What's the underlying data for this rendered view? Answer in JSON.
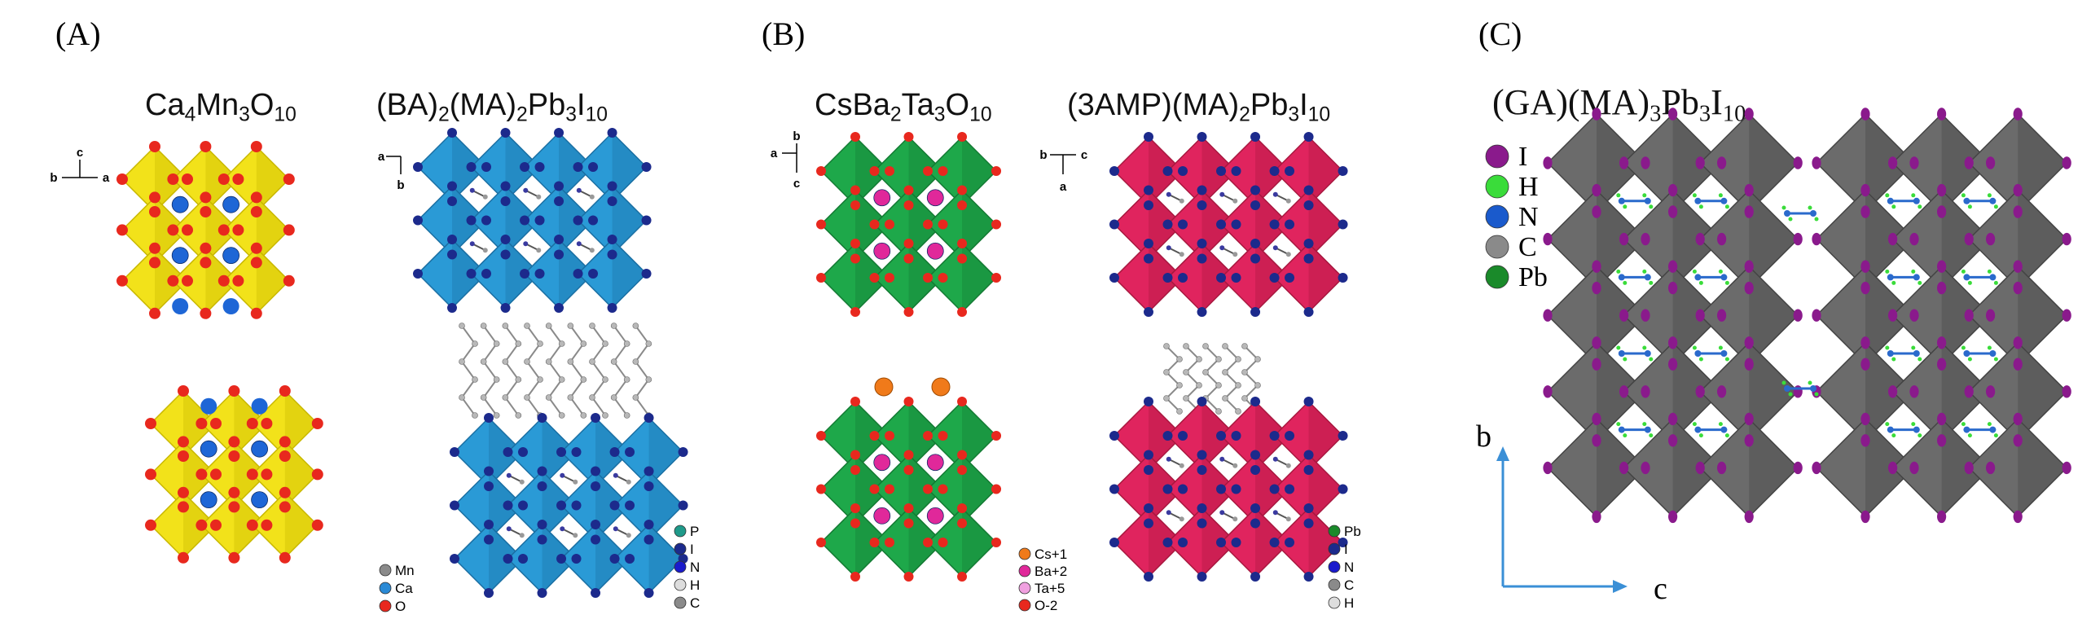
{
  "panels": [
    {
      "label": "(A)",
      "structures": [
        {
          "title": {
            "base": [
              "Ca",
              "Mn",
              "O"
            ],
            "subs": [
              "4",
              "3",
              "10"
            ]
          },
          "axes": [
            "c",
            "b",
            "a"
          ],
          "legend": [
            "Mn",
            "Ca",
            "O"
          ],
          "colors": {
            "octahedron": "#f2e21a",
            "octahedron_dark": "#c9b800",
            "anion": "#e8281e",
            "cation": "#1e66d6"
          }
        },
        {
          "title": {
            "text1": "(BA)",
            "sub1": "2",
            "text2": "(MA)",
            "sub2": "2",
            "text3": "Pb",
            "sub3": "3",
            "text4": "I",
            "sub4": "10"
          },
          "axes": [
            "a",
            "b"
          ],
          "legend": [
            "P",
            "I",
            "N",
            "H",
            "C"
          ],
          "colors": {
            "octahedron": "#2a9ad6",
            "octahedron_dark": "#1a6fa3",
            "anion": "#1c2a8c"
          }
        }
      ]
    },
    {
      "label": "(B)",
      "structures": [
        {
          "title": {
            "base": [
              "CsBa",
              "Ta",
              "O"
            ],
            "subs": [
              "2",
              "3",
              "10"
            ]
          },
          "axes": [
            "a",
            "b",
            "c"
          ],
          "legend": [
            "Cs+1",
            "Ba+2",
            "Ta+5",
            "O-2"
          ],
          "colors": {
            "octahedron": "#1ea84a",
            "octahedron_dark": "#137a33",
            "anion": "#e8281e",
            "cation": "#e0289a",
            "spacer": "#f07a1a"
          }
        },
        {
          "title": {
            "text1": "(3AMP)",
            "text2": "(MA)",
            "sub2": "2",
            "text3": "Pb",
            "sub3": "3",
            "text4": "I",
            "sub4": "10"
          },
          "axes": [
            "b",
            "c",
            "a"
          ],
          "legend": [
            "Pb",
            "I",
            "N",
            "C",
            "H"
          ],
          "colors": {
            "octahedron": "#e0245e",
            "octahedron_dark": "#a8183f",
            "anion": "#1c2a8c"
          }
        }
      ]
    },
    {
      "label": "(C)",
      "structures": [
        {
          "title": {
            "text1": "(GA)",
            "text2": "(MA)",
            "sub2": "3",
            "text3": "Pb",
            "sub3": "3",
            "text4": "I",
            "sub4": "10"
          },
          "axes": [
            "b",
            "c"
          ],
          "legend": [
            "I",
            "H",
            "N",
            "C",
            "Pb"
          ],
          "colors": {
            "octahedron": "#6b6b6b",
            "octahedron_dark": "#444444",
            "anion": "#8a1a8c",
            "axis": "#3a8fd6"
          }
        }
      ]
    }
  ]
}
